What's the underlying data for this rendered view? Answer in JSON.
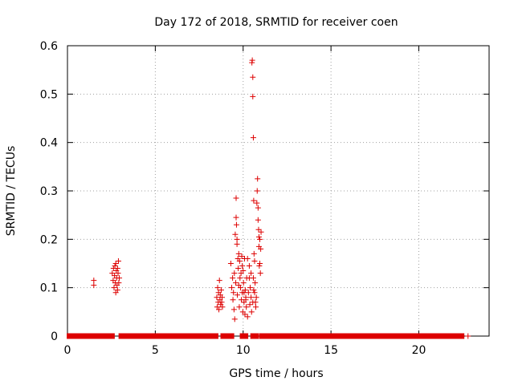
{
  "chart_data": {
    "type": "scatter",
    "title": "Day 172 of 2018, SRMTID for receiver coen",
    "xlabel": "GPS time / hours",
    "ylabel": "SRMTID / TECUs",
    "xlim": [
      0,
      24
    ],
    "ylim": [
      0,
      0.6
    ],
    "x_ticks": [
      0,
      5,
      10,
      15,
      20
    ],
    "y_ticks": [
      0,
      0.1,
      0.2,
      0.3,
      0.4,
      0.5,
      0.6
    ],
    "x_tick_labels": [
      "0",
      "5",
      "10",
      "15",
      "20"
    ],
    "y_tick_labels": [
      "0",
      "0.1",
      "0.2",
      "0.3",
      "0.4",
      "0.5",
      "0.6"
    ],
    "grid": true,
    "legend": "none",
    "marker": "plus",
    "series_color": "#dd0000",
    "zero_bands": [
      [
        0.05,
        2.6
      ],
      [
        3.0,
        8.5
      ],
      [
        8.8,
        9.4
      ],
      [
        9.9,
        10.2
      ],
      [
        10.5,
        10.8
      ],
      [
        11.0,
        22.5
      ]
    ],
    "zero_points": [
      22.8
    ],
    "points": [
      [
        1.5,
        0.115
      ],
      [
        1.5,
        0.105
      ],
      [
        2.55,
        0.13
      ],
      [
        2.6,
        0.115
      ],
      [
        2.62,
        0.14
      ],
      [
        2.65,
        0.1
      ],
      [
        2.68,
        0.125
      ],
      [
        2.7,
        0.145
      ],
      [
        2.72,
        0.11
      ],
      [
        2.75,
        0.09
      ],
      [
        2.75,
        0.15
      ],
      [
        2.78,
        0.135
      ],
      [
        2.8,
        0.12
      ],
      [
        2.82,
        0.105
      ],
      [
        2.85,
        0.14
      ],
      [
        2.85,
        0.095
      ],
      [
        2.88,
        0.13
      ],
      [
        2.9,
        0.155
      ],
      [
        2.92,
        0.11
      ],
      [
        2.95,
        0.12
      ],
      [
        8.5,
        0.08
      ],
      [
        8.52,
        0.06
      ],
      [
        8.55,
        0.1
      ],
      [
        8.58,
        0.07
      ],
      [
        8.6,
        0.09
      ],
      [
        8.62,
        0.055
      ],
      [
        8.65,
        0.115
      ],
      [
        8.68,
        0.075
      ],
      [
        8.7,
        0.085
      ],
      [
        8.72,
        0.065
      ],
      [
        8.75,
        0.095
      ],
      [
        8.78,
        0.07
      ],
      [
        8.8,
        0.08
      ],
      [
        8.82,
        0.06
      ],
      [
        9.3,
        0.15
      ],
      [
        9.35,
        0.1
      ],
      [
        9.4,
        0.12
      ],
      [
        9.42,
        0.075
      ],
      [
        9.45,
        0.09
      ],
      [
        9.48,
        0.055
      ],
      [
        9.5,
        0.13
      ],
      [
        9.52,
        0.035
      ],
      [
        9.55,
        0.21
      ],
      [
        9.58,
        0.11
      ],
      [
        9.6,
        0.285
      ],
      [
        9.6,
        0.245
      ],
      [
        9.62,
        0.23
      ],
      [
        9.65,
        0.19
      ],
      [
        9.67,
        0.085
      ],
      [
        9.7,
        0.16
      ],
      [
        9.72,
        0.14
      ],
      [
        9.75,
        0.17
      ],
      [
        9.78,
        0.06
      ],
      [
        9.8,
        0.155
      ],
      [
        9.82,
        0.12
      ],
      [
        9.85,
        0.1
      ],
      [
        9.88,
        0.13
      ],
      [
        9.9,
        0.075
      ],
      [
        9.92,
        0.165
      ],
      [
        9.95,
        0.09
      ],
      [
        9.98,
        0.05
      ],
      [
        10.0,
        0.135
      ],
      [
        10.02,
        0.11
      ],
      [
        10.05,
        0.07
      ],
      [
        10.08,
        0.16
      ],
      [
        10.1,
        0.045
      ],
      [
        10.12,
        0.095
      ],
      [
        10.15,
        0.08
      ],
      [
        10.18,
        0.06
      ],
      [
        10.2,
        0.12
      ],
      [
        10.25,
        0.04
      ],
      [
        10.3,
        0.09
      ],
      [
        10.35,
        0.12
      ],
      [
        10.38,
        0.065
      ],
      [
        10.4,
        0.1
      ],
      [
        10.45,
        0.08
      ],
      [
        10.48,
        0.05
      ],
      [
        10.5,
        0.565
      ],
      [
        10.52,
        0.57
      ],
      [
        10.55,
        0.535
      ],
      [
        10.55,
        0.495
      ],
      [
        10.58,
        0.41
      ],
      [
        10.6,
        0.28
      ],
      [
        10.62,
        0.17
      ],
      [
        10.65,
        0.09
      ],
      [
        10.68,
        0.11
      ],
      [
        10.7,
        0.07
      ],
      [
        10.72,
        0.06
      ],
      [
        10.75,
        0.08
      ],
      [
        10.78,
        0.275
      ],
      [
        10.8,
        0.3
      ],
      [
        10.82,
        0.325
      ],
      [
        10.85,
        0.265
      ],
      [
        10.85,
        0.24
      ],
      [
        10.88,
        0.22
      ],
      [
        10.9,
        0.205
      ],
      [
        10.9,
        0.185
      ],
      [
        10.92,
        0.145
      ],
      [
        10.95,
        0.15
      ],
      [
        10.95,
        0.2
      ],
      [
        10.98,
        0.13
      ],
      [
        11.0,
        0.18
      ],
      [
        11.02,
        0.215
      ],
      [
        10.6,
        0.095
      ],
      [
        10.58,
        0.12
      ],
      [
        10.65,
        0.155
      ],
      [
        10.45,
        0.13
      ],
      [
        10.35,
        0.145
      ],
      [
        10.25,
        0.16
      ],
      [
        10.15,
        0.075
      ],
      [
        9.95,
        0.145
      ],
      [
        9.75,
        0.105
      ],
      [
        9.65,
        0.2
      ],
      [
        10.05,
        0.09
      ],
      [
        10.55,
        0.07
      ]
    ]
  }
}
